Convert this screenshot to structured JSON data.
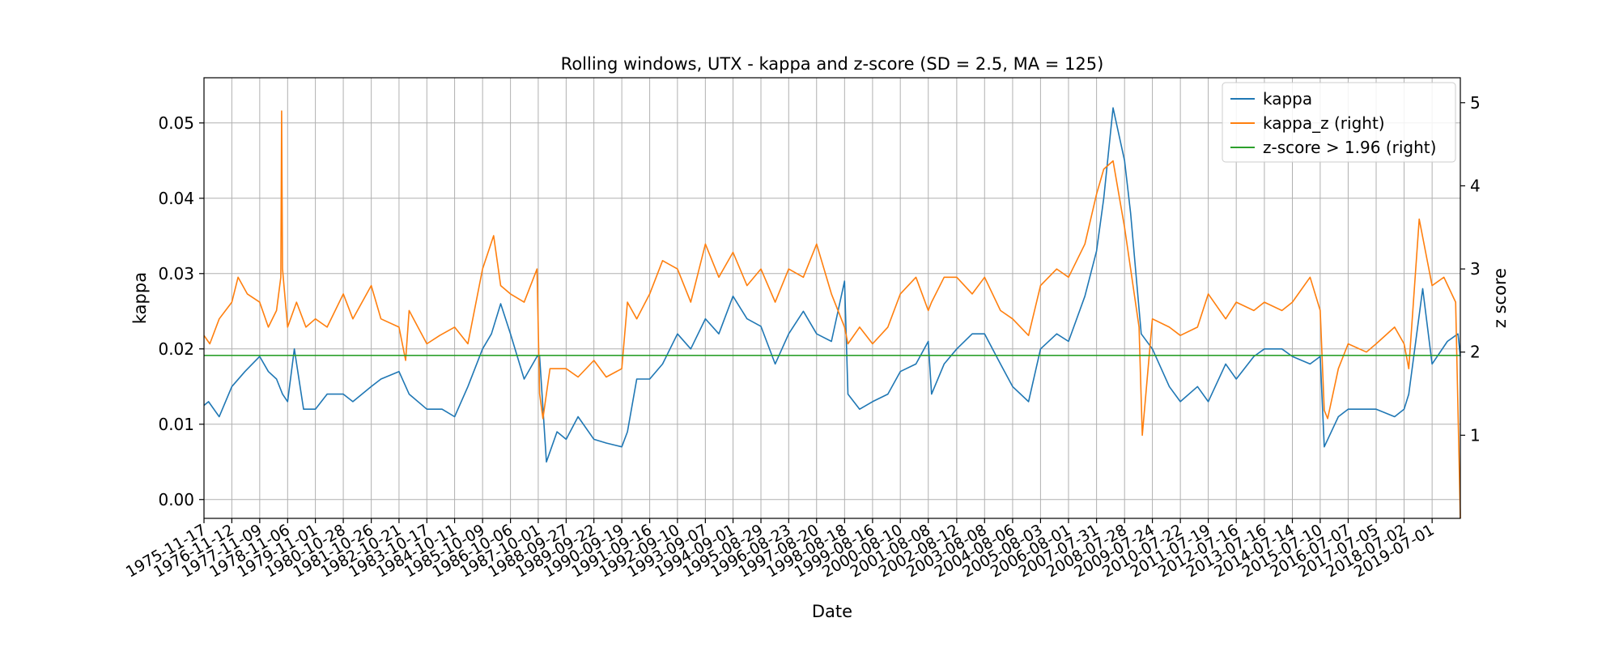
{
  "chart_data": {
    "type": "line",
    "title": "Rolling windows, UTX - kappa and z-score (SD = 2.5, MA = 125)",
    "xlabel": "Date",
    "ylabel": "kappa",
    "ylabel_right": "z score",
    "grid": true,
    "legend_position": "top-right",
    "ylim": [
      -0.0025,
      0.056
    ],
    "ylim_right": [
      0.0,
      5.3
    ],
    "yticks": [
      0.0,
      0.01,
      0.02,
      0.03,
      0.04,
      0.05
    ],
    "ytick_labels": [
      "0.00",
      "0.01",
      "0.02",
      "0.03",
      "0.04",
      "0.05"
    ],
    "yticks_right": [
      1,
      2,
      3,
      4,
      5
    ],
    "ytick_labels_right": [
      "1",
      "2",
      "3",
      "4",
      "5"
    ],
    "xlim": [
      "1975-11-17",
      "2020-07-01"
    ],
    "x_ticks": [
      "1975-11-17",
      "1976-11-12",
      "1977-11-09",
      "1978-11-06",
      "1979-11-01",
      "1980-10-28",
      "1981-10-26",
      "1982-10-21",
      "1983-10-17",
      "1984-10-11",
      "1985-10-09",
      "1986-10-06",
      "1987-10-01",
      "1988-09-27",
      "1989-09-22",
      "1990-09-19",
      "1991-09-16",
      "1992-09-10",
      "1993-09-07",
      "1994-09-01",
      "1995-08-29",
      "1996-08-23",
      "1997-08-20",
      "1998-08-18",
      "1999-08-16",
      "2000-08-10",
      "2001-08-08",
      "2002-08-12",
      "2003-08-08",
      "2004-08-06",
      "2005-08-03",
      "2006-08-01",
      "2007-07-31",
      "2008-07-28",
      "2009-07-24",
      "2010-07-22",
      "2011-07-19",
      "2012-07-16",
      "2013-07-16",
      "2014-07-14",
      "2015-07-10",
      "2016-07-07",
      "2017-07-05",
      "2018-07-02",
      "2019-07-01"
    ],
    "series": [
      {
        "name": "kappa",
        "axis": "left",
        "color": "#1f77b4",
        "x": [
          "1975-11-17",
          "1976-01-15",
          "1976-06-01",
          "1976-11-12",
          "1977-05-01",
          "1977-11-09",
          "1978-03-01",
          "1978-06-15",
          "1978-09-01",
          "1978-11-06",
          "1979-02-01",
          "1979-06-01",
          "1979-11-01",
          "1980-04-01",
          "1980-10-28",
          "1981-03-01",
          "1981-10-26",
          "1982-03-01",
          "1982-10-21",
          "1983-03-01",
          "1983-10-17",
          "1984-05-01",
          "1984-10-11",
          "1985-04-01",
          "1985-10-09",
          "1986-02-01",
          "1986-06-01",
          "1986-10-06",
          "1987-04-01",
          "1987-09-15",
          "1987-10-19",
          "1988-01-15",
          "1988-06-01",
          "1988-09-27",
          "1989-03-01",
          "1989-09-22",
          "1990-03-01",
          "1990-09-19",
          "1990-12-01",
          "1991-04-01",
          "1991-09-16",
          "1992-03-01",
          "1992-09-10",
          "1993-03-01",
          "1993-09-07",
          "1994-03-01",
          "1994-09-01",
          "1995-03-01",
          "1995-08-29",
          "1996-03-01",
          "1996-08-23",
          "1997-03-01",
          "1997-08-20",
          "1998-03-01",
          "1998-08-18",
          "1998-10-01",
          "1999-03-01",
          "1999-08-16",
          "2000-03-01",
          "2000-08-10",
          "2001-03-01",
          "2001-08-08",
          "2001-09-20",
          "2002-03-01",
          "2002-08-12",
          "2003-03-01",
          "2003-08-08",
          "2004-03-01",
          "2004-08-06",
          "2005-03-01",
          "2005-08-03",
          "2006-03-01",
          "2006-08-01",
          "2007-03-01",
          "2007-07-31",
          "2007-11-01",
          "2008-03-01",
          "2008-07-28",
          "2008-10-15",
          "2009-03-01",
          "2009-07-24",
          "2010-03-01",
          "2010-07-22",
          "2011-03-01",
          "2011-07-19",
          "2012-03-01",
          "2012-07-16",
          "2013-03-01",
          "2013-07-16",
          "2014-03-01",
          "2014-07-14",
          "2015-03-01",
          "2015-07-10",
          "2015-09-01",
          "2016-03-01",
          "2016-07-07",
          "2017-03-01",
          "2017-07-05",
          "2018-03-01",
          "2018-07-02",
          "2018-09-01",
          "2019-03-01",
          "2019-07-01",
          "2020-01-15",
          "2020-06-01",
          "2020-07-01"
        ],
        "y": [
          0.0125,
          0.013,
          0.011,
          0.015,
          0.017,
          0.019,
          0.017,
          0.016,
          0.014,
          0.013,
          0.02,
          0.012,
          0.012,
          0.014,
          0.014,
          0.013,
          0.015,
          0.016,
          0.017,
          0.014,
          0.012,
          0.012,
          0.011,
          0.015,
          0.02,
          0.022,
          0.026,
          0.022,
          0.016,
          0.019,
          0.019,
          0.005,
          0.009,
          0.008,
          0.011,
          0.008,
          0.0075,
          0.007,
          0.009,
          0.016,
          0.016,
          0.018,
          0.022,
          0.02,
          0.024,
          0.022,
          0.027,
          0.024,
          0.023,
          0.018,
          0.022,
          0.025,
          0.022,
          0.021,
          0.029,
          0.014,
          0.012,
          0.013,
          0.014,
          0.017,
          0.018,
          0.021,
          0.014,
          0.018,
          0.02,
          0.022,
          0.022,
          0.018,
          0.015,
          0.013,
          0.02,
          0.022,
          0.021,
          0.027,
          0.033,
          0.04,
          0.052,
          0.045,
          0.038,
          0.022,
          0.02,
          0.015,
          0.013,
          0.015,
          0.013,
          0.018,
          0.016,
          0.019,
          0.02,
          0.02,
          0.019,
          0.018,
          0.019,
          0.007,
          0.011,
          0.012,
          0.012,
          0.012,
          0.011,
          0.012,
          0.014,
          0.028,
          0.018,
          0.021,
          0.022,
          0.019
        ]
      },
      {
        "name": "kappa_z (right)",
        "axis": "right",
        "color": "#ff7f0e",
        "x": [
          "1975-11-17",
          "1976-02-01",
          "1976-06-01",
          "1976-11-12",
          "1977-02-01",
          "1977-06-01",
          "1977-11-09",
          "1978-03-01",
          "1978-06-15",
          "1978-08-10",
          "1978-08-20",
          "1978-09-01",
          "1978-11-06",
          "1979-03-01",
          "1979-07-01",
          "1979-11-01",
          "1980-04-01",
          "1980-10-28",
          "1981-03-01",
          "1981-10-26",
          "1982-03-01",
          "1982-10-21",
          "1983-01-15",
          "1983-03-01",
          "1983-10-17",
          "1984-04-01",
          "1984-10-11",
          "1985-04-01",
          "1985-10-09",
          "1986-03-01",
          "1986-06-01",
          "1986-10-06",
          "1987-04-01",
          "1987-09-15",
          "1987-10-19",
          "1987-12-01",
          "1988-03-01",
          "1988-09-27",
          "1989-03-01",
          "1989-09-22",
          "1990-03-01",
          "1990-09-19",
          "1990-12-01",
          "1991-04-01",
          "1991-09-16",
          "1992-03-01",
          "1992-09-10",
          "1993-03-01",
          "1993-09-07",
          "1994-03-01",
          "1994-09-01",
          "1995-03-01",
          "1995-08-29",
          "1996-03-01",
          "1996-08-23",
          "1997-03-01",
          "1997-08-20",
          "1998-03-01",
          "1998-08-18",
          "1998-10-01",
          "1999-03-01",
          "1999-08-16",
          "2000-03-01",
          "2000-08-10",
          "2001-03-01",
          "2001-08-08",
          "2001-09-20",
          "2002-03-01",
          "2002-08-12",
          "2003-03-01",
          "2003-08-08",
          "2004-03-01",
          "2004-08-06",
          "2005-03-01",
          "2005-08-03",
          "2006-03-01",
          "2006-08-01",
          "2007-03-01",
          "2007-07-31",
          "2007-11-01",
          "2008-03-01",
          "2008-07-28",
          "2008-10-15",
          "2009-02-01",
          "2009-03-15",
          "2009-07-24",
          "2010-03-01",
          "2010-07-22",
          "2011-03-01",
          "2011-07-19",
          "2012-03-01",
          "2012-07-16",
          "2013-03-01",
          "2013-07-16",
          "2014-03-01",
          "2014-07-14",
          "2015-03-01",
          "2015-07-10",
          "2015-09-01",
          "2015-10-15",
          "2016-03-01",
          "2016-07-07",
          "2017-03-01",
          "2017-07-05",
          "2018-03-01",
          "2018-07-02",
          "2018-09-01",
          "2019-01-15",
          "2019-07-01",
          "2019-12-01",
          "2020-05-01",
          "2020-07-01"
        ],
        "y": [
          2.2,
          2.1,
          2.4,
          2.6,
          2.9,
          2.7,
          2.6,
          2.3,
          2.5,
          2.9,
          4.9,
          3.0,
          2.3,
          2.6,
          2.3,
          2.4,
          2.3,
          2.7,
          2.4,
          2.8,
          2.4,
          2.3,
          1.9,
          2.5,
          2.1,
          2.2,
          2.3,
          2.1,
          3.0,
          3.4,
          2.8,
          2.7,
          2.6,
          3.0,
          1.5,
          1.2,
          1.8,
          1.8,
          1.7,
          1.9,
          1.7,
          1.8,
          2.6,
          2.4,
          2.7,
          3.1,
          3.0,
          2.6,
          3.3,
          2.9,
          3.2,
          2.8,
          3.0,
          2.6,
          3.0,
          2.9,
          3.3,
          2.7,
          2.3,
          2.1,
          2.3,
          2.1,
          2.3,
          2.7,
          2.9,
          2.5,
          2.6,
          2.9,
          2.9,
          2.7,
          2.9,
          2.5,
          2.4,
          2.2,
          2.8,
          3.0,
          2.9,
          3.3,
          3.9,
          4.2,
          4.3,
          3.5,
          3.0,
          2.3,
          1.0,
          2.4,
          2.3,
          2.2,
          2.3,
          2.7,
          2.4,
          2.6,
          2.5,
          2.6,
          2.5,
          2.6,
          2.9,
          2.5,
          1.3,
          1.2,
          1.8,
          2.1,
          2.0,
          2.1,
          2.3,
          2.1,
          1.8,
          3.6,
          2.8,
          2.9,
          2.6,
          0.0
        ]
      },
      {
        "name": "z-score > 1.96 (right)",
        "axis": "right",
        "color": "#2ca02c",
        "x": [
          "1975-11-17",
          "2020-07-01"
        ],
        "y": [
          1.96,
          1.96
        ]
      }
    ]
  }
}
